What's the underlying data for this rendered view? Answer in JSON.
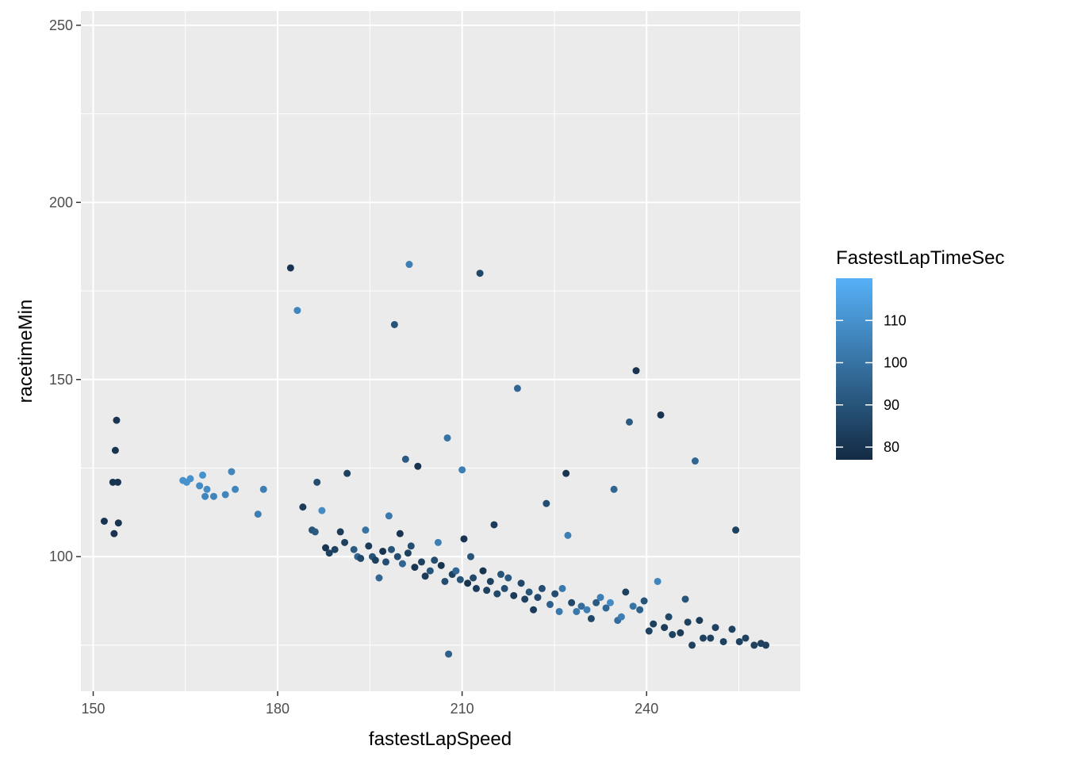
{
  "chart_data": {
    "type": "scatter",
    "xlabel": "fastestLapSpeed",
    "ylabel": "racetimeMin",
    "xlim": [
      148,
      265
    ],
    "ylim": [
      62,
      254
    ],
    "x_ticks": [
      150,
      180,
      210,
      240
    ],
    "y_ticks": [
      100,
      150,
      200,
      250
    ],
    "grid": true,
    "legend": {
      "title": "FastestLapTimeSec",
      "placement": "right",
      "type": "colorbar",
      "range": [
        77,
        120
      ],
      "ticks": [
        80,
        90,
        100,
        110
      ],
      "color_low": "#132B43",
      "color_high": "#56B1F7"
    },
    "points": [
      [
        151.8,
        110,
        80
      ],
      [
        153.2,
        121,
        80
      ],
      [
        153.4,
        106.5,
        80
      ],
      [
        153.6,
        130,
        80
      ],
      [
        153.8,
        138.5,
        80
      ],
      [
        154,
        121,
        80
      ],
      [
        154.1,
        109.5,
        80
      ],
      [
        164.6,
        121.5,
        110
      ],
      [
        165.2,
        121,
        110
      ],
      [
        165.8,
        122,
        110
      ],
      [
        167.3,
        120,
        108
      ],
      [
        167.8,
        123,
        110
      ],
      [
        168.2,
        117,
        106
      ],
      [
        168.5,
        119,
        108
      ],
      [
        169.6,
        117,
        106
      ],
      [
        171.5,
        117.5,
        106
      ],
      [
        172.5,
        124,
        106
      ],
      [
        173.1,
        119,
        106
      ],
      [
        176.8,
        112,
        104
      ],
      [
        177.7,
        119,
        104
      ],
      [
        182.1,
        181.5,
        80
      ],
      [
        183.2,
        169.5,
        106
      ],
      [
        184.1,
        114,
        82
      ],
      [
        185.6,
        107.5,
        90
      ],
      [
        186.1,
        107,
        92
      ],
      [
        186.4,
        121,
        88
      ],
      [
        187.2,
        113,
        108
      ],
      [
        187.8,
        102.5,
        80
      ],
      [
        188.4,
        101,
        84
      ],
      [
        189.3,
        102,
        84
      ],
      [
        190.2,
        107,
        82
      ],
      [
        190.9,
        104,
        84
      ],
      [
        191.3,
        123.5,
        84
      ],
      [
        192.4,
        102,
        92
      ],
      [
        193,
        100,
        96
      ],
      [
        193.5,
        99.5,
        86
      ],
      [
        194.3,
        107.5,
        100
      ],
      [
        194.8,
        103,
        82
      ],
      [
        195.4,
        100,
        90
      ],
      [
        195.9,
        99,
        84
      ],
      [
        196.5,
        94,
        96
      ],
      [
        197.1,
        101.5,
        80
      ],
      [
        197.6,
        98.5,
        88
      ],
      [
        198.1,
        111.5,
        102
      ],
      [
        198.5,
        102,
        90
      ],
      [
        199,
        165.5,
        90
      ],
      [
        199.5,
        100,
        88
      ],
      [
        199.9,
        106.5,
        80
      ],
      [
        200.3,
        98,
        96
      ],
      [
        200.8,
        127.5,
        92
      ],
      [
        201.2,
        101,
        84
      ],
      [
        201.4,
        182.5,
        104
      ],
      [
        201.7,
        103,
        88
      ],
      [
        202.3,
        97,
        80
      ],
      [
        202.8,
        125.5,
        80
      ],
      [
        203.4,
        98.5,
        84
      ],
      [
        204,
        94.5,
        82
      ],
      [
        204.8,
        96,
        90
      ],
      [
        205.5,
        99,
        88
      ],
      [
        206.1,
        104,
        104
      ],
      [
        206.6,
        97.5,
        80
      ],
      [
        207.2,
        93,
        88
      ],
      [
        207.6,
        133.5,
        100
      ],
      [
        207.8,
        72.5,
        94
      ],
      [
        208.4,
        95,
        84
      ],
      [
        209,
        96,
        96
      ],
      [
        209.7,
        93.5,
        90
      ],
      [
        210,
        124.5,
        104
      ],
      [
        210.3,
        105,
        80
      ],
      [
        210.9,
        92.5,
        80
      ],
      [
        211.4,
        100,
        90
      ],
      [
        211.8,
        94,
        86
      ],
      [
        212.3,
        91,
        82
      ],
      [
        212.9,
        180,
        86
      ],
      [
        213.4,
        96,
        80
      ],
      [
        214,
        90.5,
        84
      ],
      [
        214.6,
        93,
        84
      ],
      [
        215.2,
        109,
        82
      ],
      [
        215.7,
        89.5,
        86
      ],
      [
        216.3,
        95,
        90
      ],
      [
        216.9,
        91,
        88
      ],
      [
        217.5,
        94,
        92
      ],
      [
        218.4,
        89,
        82
      ],
      [
        219,
        147.5,
        96
      ],
      [
        219.6,
        92.5,
        86
      ],
      [
        220.2,
        88,
        84
      ],
      [
        220.9,
        90,
        90
      ],
      [
        221.6,
        85,
        82
      ],
      [
        222.3,
        88.5,
        86
      ],
      [
        223,
        91,
        88
      ],
      [
        223.7,
        115,
        88
      ],
      [
        224.3,
        86.5,
        94
      ],
      [
        225.1,
        89.5,
        88
      ],
      [
        225.8,
        84.5,
        102
      ],
      [
        226.3,
        91,
        102
      ],
      [
        226.9,
        123.5,
        80
      ],
      [
        227.2,
        106,
        104
      ],
      [
        227.8,
        87,
        86
      ],
      [
        228.6,
        84.5,
        102
      ],
      [
        229.4,
        86,
        98
      ],
      [
        230.3,
        85,
        104
      ],
      [
        231,
        82.5,
        86
      ],
      [
        231.8,
        87,
        92
      ],
      [
        232.5,
        88.5,
        104
      ],
      [
        233.4,
        85.5,
        96
      ],
      [
        234.1,
        87,
        108
      ],
      [
        234.7,
        119,
        96
      ],
      [
        235.3,
        82,
        98
      ],
      [
        235.9,
        83,
        104
      ],
      [
        236.6,
        90,
        84
      ],
      [
        237.2,
        138,
        92
      ],
      [
        237.8,
        86,
        100
      ],
      [
        238.3,
        152.5,
        80
      ],
      [
        238.9,
        85,
        94
      ],
      [
        239.6,
        87.5,
        90
      ],
      [
        240.4,
        79,
        84
      ],
      [
        241.1,
        81,
        84
      ],
      [
        241.8,
        93,
        106
      ],
      [
        242.3,
        140,
        80
      ],
      [
        242.9,
        80,
        82
      ],
      [
        243.6,
        83,
        86
      ],
      [
        244.2,
        78,
        84
      ],
      [
        245.5,
        78.5,
        82
      ],
      [
        246.3,
        88,
        90
      ],
      [
        246.7,
        81.5,
        84
      ],
      [
        247.4,
        75,
        84
      ],
      [
        247.9,
        127,
        96
      ],
      [
        248.6,
        82,
        82
      ],
      [
        249.2,
        77,
        84
      ],
      [
        250.4,
        77,
        84
      ],
      [
        251.2,
        80,
        84
      ],
      [
        252.5,
        76,
        84
      ],
      [
        253.9,
        79.5,
        84
      ],
      [
        254.5,
        107.5,
        84
      ],
      [
        255.1,
        76,
        84
      ],
      [
        256.1,
        77,
        84
      ],
      [
        257.5,
        75,
        84
      ],
      [
        258.6,
        75.5,
        84
      ],
      [
        259.4,
        75,
        84
      ]
    ]
  }
}
